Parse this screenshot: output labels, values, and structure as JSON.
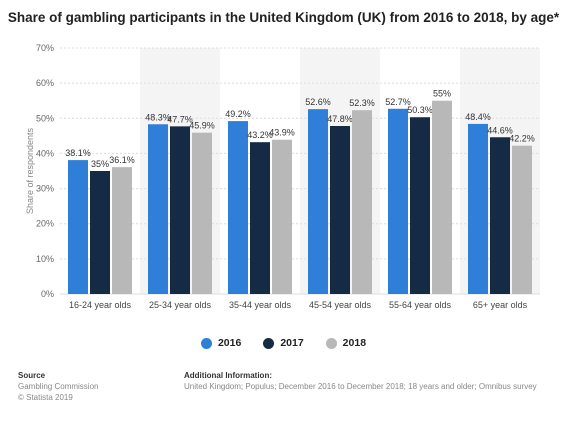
{
  "chart_data": {
    "type": "bar",
    "title": "Share of gambling participants in the United Kingdom (UK) from 2016 to 2018, by age*",
    "ylabel": "Share of respondents",
    "ylim": [
      0,
      70
    ],
    "yticks": [
      "0%",
      "10%",
      "20%",
      "30%",
      "40%",
      "50%",
      "60%",
      "70%"
    ],
    "categories": [
      "16-24 year olds",
      "25-34 year olds",
      "35-44 year olds",
      "45-54 year olds",
      "55-64 year olds",
      "65+ year olds"
    ],
    "series": [
      {
        "name": "2016",
        "color": "#2f7ed8",
        "values": [
          38.1,
          48.3,
          49.2,
          52.6,
          52.7,
          48.4
        ],
        "labels": [
          "38.1%",
          "48.3%",
          "49.2%",
          "52.6%",
          "52.7%",
          "48.4%"
        ]
      },
      {
        "name": "2017",
        "color": "#142a45",
        "values": [
          35,
          47.7,
          43.2,
          47.8,
          50.3,
          44.6
        ],
        "labels": [
          "35%",
          "47.7%",
          "43.2%",
          "47.8%",
          "50.3%",
          "44.6%"
        ]
      },
      {
        "name": "2018",
        "color": "#b8b8b8",
        "values": [
          36.1,
          45.9,
          43.9,
          52.3,
          55,
          42.2
        ],
        "labels": [
          "36.1%",
          "45.9%",
          "43.9%",
          "52.3%",
          "55%",
          "42.2%"
        ]
      }
    ],
    "legend_position": "bottom",
    "grid": true
  },
  "footer": {
    "source_heading": "Source",
    "source_lines": [
      "Gambling Commission",
      "© Statista 2019"
    ],
    "info_heading": "Additional Information:",
    "info_text": "United Kingdom; Populus; December 2016 to December 2018; 18 years and older; Omnibus survey"
  }
}
